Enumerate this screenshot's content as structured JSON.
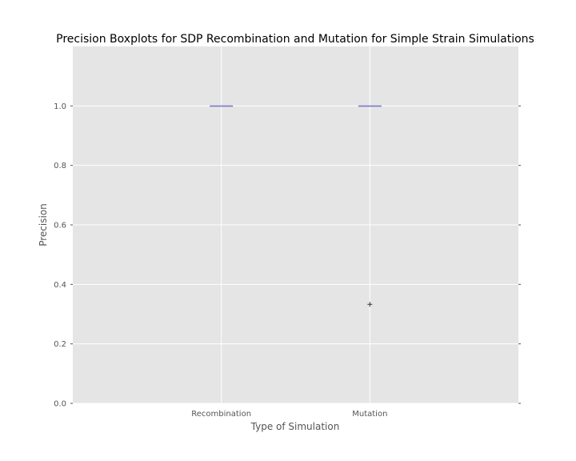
{
  "chart_data": {
    "type": "boxplot",
    "title": "Precision Boxplots for SDP Recombination and Mutation for Simple Strain Simulations",
    "xlabel": "Type of Simulation",
    "ylabel": "Precision",
    "ylim": [
      0.0,
      1.2
    ],
    "yticks": [
      0.0,
      0.2,
      0.4,
      0.6,
      0.8,
      1.0
    ],
    "ytick_labels": [
      "0.0",
      "0.2",
      "0.4",
      "0.6",
      "0.8",
      "1.0"
    ],
    "categories": [
      "Recombination",
      "Mutation"
    ],
    "series": [
      {
        "category": "Recombination",
        "q1": 1.0,
        "median": 1.0,
        "q3": 1.0,
        "whisker_low": 1.0,
        "whisker_high": 1.0,
        "outliers": []
      },
      {
        "category": "Mutation",
        "q1": 1.0,
        "median": 1.0,
        "q3": 1.0,
        "whisker_low": 1.0,
        "whisker_high": 1.0,
        "outliers": [
          0.333
        ]
      }
    ],
    "grid": true,
    "colors": {
      "plot_background": "#e5e5e5",
      "grid": "#ffffff",
      "median": "#7777cc",
      "outlier": "#333333",
      "tick": "#555555"
    }
  }
}
